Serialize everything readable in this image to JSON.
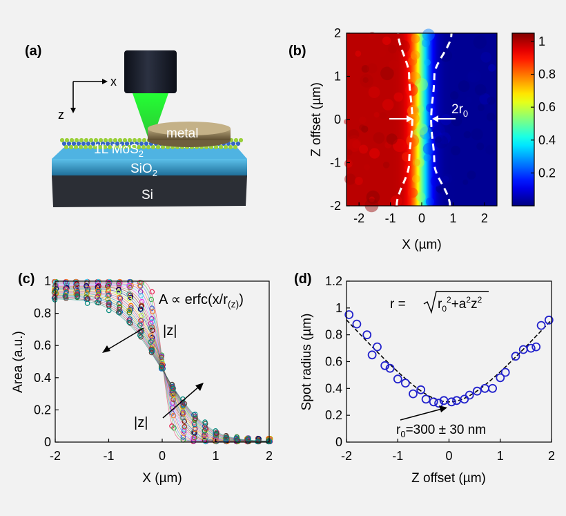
{
  "colors": {
    "bg": "#f2f2f2",
    "lens": "#1a1e2a",
    "beam": "#22dd33",
    "mos2": "#9ad03a",
    "sio2": "#3aa7d8",
    "si": "#2a2d34",
    "metal": "#8c7a55",
    "marker_d": "#2222cc"
  },
  "panel_a": {
    "label": "(a)",
    "axis_x": "x",
    "axis_z": "z",
    "metal_label": "metal",
    "mos2_label": "1L MoS",
    "mos2_sub": "2",
    "sio2_label": "SiO",
    "sio2_sub": "2",
    "si_label": "Si"
  },
  "chart_data": [
    {
      "panel": "(b)",
      "type": "heatmap",
      "xlabel": "X (µm)",
      "ylabel": "Z offset (µm)",
      "xlim": [
        -2.4,
        2.4
      ],
      "ylim": [
        -2,
        2
      ],
      "xticks": [
        "-2",
        "-1",
        "0",
        "1",
        "2"
      ],
      "yticks": [
        "2",
        "1",
        "0",
        "-1",
        "-2"
      ],
      "colorbar": {
        "range": [
          0,
          1.05
        ],
        "ticks": [
          "1",
          "0.8",
          "0.6",
          "0.4",
          "0.2"
        ]
      },
      "edge_center": 0,
      "annotation": "2r",
      "annotation_sub": "0",
      "dashed_boundary": {
        "z": [
          -2,
          -1,
          0,
          1,
          2
        ],
        "left_x": [
          -0.8,
          -0.4,
          -0.3,
          -0.4,
          -0.75
        ],
        "right_x": [
          0.9,
          0.4,
          0.3,
          0.4,
          0.95
        ]
      }
    },
    {
      "panel": "(c)",
      "type": "scatter",
      "xlabel": "X (µm)",
      "ylabel": "Area (a.u.)",
      "xlim": [
        -2,
        2
      ],
      "ylim": [
        0,
        1
      ],
      "xticks": [
        "-2",
        "-1",
        "0",
        "1",
        "2"
      ],
      "yticks": [
        "1",
        "0.8",
        "0.6",
        "0.4",
        "0.2",
        "0"
      ],
      "formula": "A ∝ erfc(x/r",
      "formula_sub": "(z)",
      "formula_end": ")",
      "arrow_label_upper": "|z|",
      "arrow_label_lower": "|z|",
      "model": "A = 0.5·erfc(x/r(z))",
      "radius_min": 0.2,
      "radius_max": 0.95,
      "curve_count": 22
    },
    {
      "panel": "(d)",
      "type": "scatter",
      "xlabel": "Z offset (µm)",
      "ylabel": "Spot radius (µm)",
      "xlim": [
        -2,
        2
      ],
      "ylim": [
        0,
        1.2
      ],
      "xticks": [
        "-2",
        "-1",
        "0",
        "1",
        "2"
      ],
      "yticks": [
        "1.2",
        "1",
        "0.8",
        "0.6",
        "0.4",
        "0.2",
        "0"
      ],
      "formula_lhs": "r = ",
      "formula_r0": "r",
      "formula_r0_sub": "0",
      "formula_rest": "+a",
      "formula_z": "z",
      "sup2": "2",
      "annotation": "r",
      "annotation_sub": "0",
      "annotation_rest": "=300 ± 30 nm",
      "fit": {
        "r0": 0.3,
        "a": 0.43
      },
      "x": [
        -1.95,
        -1.8,
        -1.6,
        -1.5,
        -1.4,
        -1.25,
        -1.15,
        -1.0,
        -0.85,
        -0.7,
        -0.55,
        -0.45,
        -0.3,
        -0.2,
        -0.1,
        0.05,
        0.15,
        0.3,
        0.4,
        0.55,
        0.7,
        0.85,
        1.0,
        1.1,
        1.3,
        1.45,
        1.6,
        1.7,
        1.8,
        1.95
      ],
      "y": [
        0.95,
        0.88,
        0.8,
        0.65,
        0.71,
        0.57,
        0.55,
        0.47,
        0.44,
        0.36,
        0.39,
        0.32,
        0.3,
        0.29,
        0.31,
        0.3,
        0.31,
        0.32,
        0.35,
        0.38,
        0.4,
        0.4,
        0.48,
        0.52,
        0.64,
        0.69,
        0.7,
        0.71,
        0.87,
        0.91
      ]
    }
  ]
}
